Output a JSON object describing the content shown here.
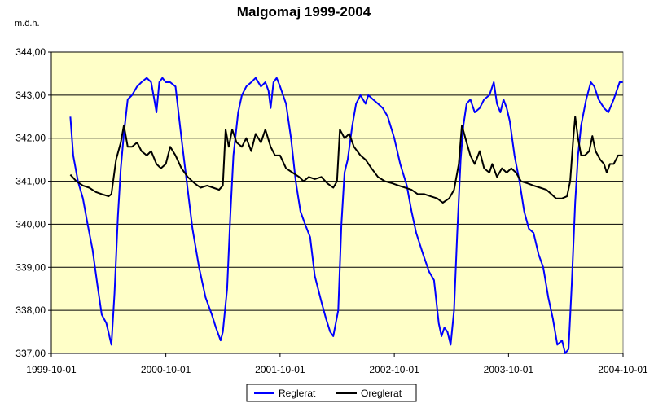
{
  "chart_data": {
    "type": "line",
    "title": "Malgomaj 1999-2004",
    "ylabel": "m.ö.h.",
    "xlabel": "",
    "x_ticks": [
      "1999-10-01",
      "2000-10-01",
      "2001-10-01",
      "2002-10-01",
      "2003-10-01",
      "2004-10-01"
    ],
    "y_ticks": [
      "337,00",
      "338,00",
      "339,00",
      "340,00",
      "341,00",
      "342,00",
      "343,00",
      "344,00"
    ],
    "xlim": [
      "1999-10-01",
      "2004-10-01"
    ],
    "ylim": [
      337,
      344
    ],
    "grid": "horizontal",
    "legend_position": "bottom",
    "plot_background": "#FFFFC8",
    "series": [
      {
        "name": "Reglerat",
        "color": "#0000FF",
        "points": [
          [
            "1999-12-01",
            342.5
          ],
          [
            "1999-12-10",
            341.6
          ],
          [
            "1999-12-25",
            341.0
          ],
          [
            "2000-01-10",
            340.6
          ],
          [
            "2000-01-25",
            340.0
          ],
          [
            "2000-02-10",
            339.4
          ],
          [
            "2000-02-25",
            338.6
          ],
          [
            "2000-03-10",
            337.9
          ],
          [
            "2000-03-25",
            337.7
          ],
          [
            "2000-04-10",
            337.2
          ],
          [
            "2000-04-20",
            338.4
          ],
          [
            "2000-05-01",
            340.2
          ],
          [
            "2000-05-10",
            341.3
          ],
          [
            "2000-05-20",
            342.1
          ],
          [
            "2000-06-01",
            342.9
          ],
          [
            "2000-06-15",
            343.0
          ],
          [
            "2000-07-01",
            343.2
          ],
          [
            "2000-07-15",
            343.3
          ],
          [
            "2000-08-01",
            343.4
          ],
          [
            "2000-08-15",
            343.3
          ],
          [
            "2000-08-25",
            342.9
          ],
          [
            "2000-09-01",
            342.6
          ],
          [
            "2000-09-10",
            343.3
          ],
          [
            "2000-09-20",
            343.4
          ],
          [
            "2000-10-01",
            343.3
          ],
          [
            "2000-10-15",
            343.3
          ],
          [
            "2000-11-01",
            343.2
          ],
          [
            "2000-11-20",
            342.0
          ],
          [
            "2000-12-10",
            340.8
          ],
          [
            "2000-12-25",
            339.9
          ],
          [
            "2001-01-15",
            339.0
          ],
          [
            "2001-02-05",
            338.3
          ],
          [
            "2001-02-25",
            337.9
          ],
          [
            "2001-03-10",
            337.6
          ],
          [
            "2001-03-25",
            337.3
          ],
          [
            "2001-04-01",
            337.5
          ],
          [
            "2001-04-15",
            338.5
          ],
          [
            "2001-04-25",
            340.2
          ],
          [
            "2001-05-05",
            341.6
          ],
          [
            "2001-05-20",
            342.6
          ],
          [
            "2001-06-01",
            343.0
          ],
          [
            "2001-06-15",
            343.2
          ],
          [
            "2001-07-01",
            343.3
          ],
          [
            "2001-07-15",
            343.4
          ],
          [
            "2001-08-01",
            343.2
          ],
          [
            "2001-08-15",
            343.3
          ],
          [
            "2001-08-25",
            343.1
          ],
          [
            "2001-09-01",
            342.7
          ],
          [
            "2001-09-10",
            343.3
          ],
          [
            "2001-09-20",
            343.4
          ],
          [
            "2001-10-01",
            343.2
          ],
          [
            "2001-10-20",
            342.8
          ],
          [
            "2001-11-05",
            342.0
          ],
          [
            "2001-11-20",
            341.0
          ],
          [
            "2001-12-05",
            340.3
          ],
          [
            "2001-12-20",
            340.0
          ],
          [
            "2002-01-05",
            339.7
          ],
          [
            "2002-01-20",
            338.8
          ],
          [
            "2002-02-10",
            338.2
          ],
          [
            "2002-02-25",
            337.8
          ],
          [
            "2002-03-10",
            337.5
          ],
          [
            "2002-03-20",
            337.4
          ],
          [
            "2002-04-05",
            338.0
          ],
          [
            "2002-04-15",
            340.0
          ],
          [
            "2002-04-25",
            341.2
          ],
          [
            "2002-05-05",
            341.5
          ],
          [
            "2002-05-20",
            342.3
          ],
          [
            "2002-06-01",
            342.8
          ],
          [
            "2002-06-15",
            343.0
          ],
          [
            "2002-07-01",
            342.8
          ],
          [
            "2002-07-10",
            343.0
          ],
          [
            "2002-07-25",
            342.9
          ],
          [
            "2002-08-10",
            342.8
          ],
          [
            "2002-08-25",
            342.7
          ],
          [
            "2002-09-10",
            342.5
          ],
          [
            "2002-10-01",
            342.0
          ],
          [
            "2002-10-20",
            341.4
          ],
          [
            "2002-11-10",
            340.9
          ],
          [
            "2002-11-25",
            340.3
          ],
          [
            "2002-12-10",
            339.8
          ],
          [
            "2003-01-01",
            339.3
          ],
          [
            "2003-01-20",
            338.9
          ],
          [
            "2003-02-05",
            338.7
          ],
          [
            "2003-02-20",
            337.7
          ],
          [
            "2003-03-01",
            337.4
          ],
          [
            "2003-03-10",
            337.6
          ],
          [
            "2003-03-20",
            337.5
          ],
          [
            "2003-03-30",
            337.2
          ],
          [
            "2003-04-10",
            338.0
          ],
          [
            "2003-04-20",
            339.8
          ],
          [
            "2003-05-01",
            341.5
          ],
          [
            "2003-05-10",
            342.3
          ],
          [
            "2003-05-20",
            342.8
          ],
          [
            "2003-06-01",
            342.9
          ],
          [
            "2003-06-15",
            342.6
          ],
          [
            "2003-07-01",
            342.7
          ],
          [
            "2003-07-15",
            342.9
          ],
          [
            "2003-08-01",
            343.0
          ],
          [
            "2003-08-15",
            343.3
          ],
          [
            "2003-08-25",
            342.8
          ],
          [
            "2003-09-05",
            342.6
          ],
          [
            "2003-09-15",
            342.9
          ],
          [
            "2003-09-25",
            342.7
          ],
          [
            "2003-10-05",
            342.4
          ],
          [
            "2003-10-20",
            341.6
          ],
          [
            "2003-11-05",
            341.0
          ],
          [
            "2003-11-20",
            340.3
          ],
          [
            "2003-12-05",
            339.9
          ],
          [
            "2003-12-20",
            339.8
          ],
          [
            "2004-01-05",
            339.3
          ],
          [
            "2004-01-20",
            339.0
          ],
          [
            "2004-02-05",
            338.3
          ],
          [
            "2004-02-20",
            337.8
          ],
          [
            "2004-03-05",
            337.2
          ],
          [
            "2004-03-20",
            337.3
          ],
          [
            "2004-03-30",
            337.0
          ],
          [
            "2004-04-10",
            337.1
          ],
          [
            "2004-04-20",
            338.6
          ],
          [
            "2004-05-01",
            340.5
          ],
          [
            "2004-05-10",
            341.6
          ],
          [
            "2004-05-20",
            342.3
          ],
          [
            "2004-06-05",
            342.9
          ],
          [
            "2004-06-20",
            343.3
          ],
          [
            "2004-07-01",
            343.2
          ],
          [
            "2004-07-15",
            342.9
          ],
          [
            "2004-08-01",
            342.7
          ],
          [
            "2004-08-15",
            342.6
          ],
          [
            "2004-09-01",
            342.9
          ],
          [
            "2004-09-20",
            343.3
          ],
          [
            "2004-09-30",
            343.3
          ]
        ]
      },
      {
        "name": "Oreglerat",
        "color": "#000000",
        "points": [
          [
            "1999-12-01",
            341.15
          ],
          [
            "1999-12-20",
            341.0
          ],
          [
            "2000-01-10",
            340.9
          ],
          [
            "2000-01-30",
            340.85
          ],
          [
            "2000-02-20",
            340.75
          ],
          [
            "2000-03-10",
            340.7
          ],
          [
            "2000-04-01",
            340.65
          ],
          [
            "2000-04-10",
            340.7
          ],
          [
            "2000-04-25",
            341.5
          ],
          [
            "2000-05-10",
            341.9
          ],
          [
            "2000-05-20",
            342.3
          ],
          [
            "2000-06-01",
            341.8
          ],
          [
            "2000-06-15",
            341.8
          ],
          [
            "2000-07-01",
            341.9
          ],
          [
            "2000-07-15",
            341.7
          ],
          [
            "2000-08-01",
            341.6
          ],
          [
            "2000-08-15",
            341.7
          ],
          [
            "2000-09-01",
            341.4
          ],
          [
            "2000-09-15",
            341.3
          ],
          [
            "2000-10-01",
            341.4
          ],
          [
            "2000-10-15",
            341.8
          ],
          [
            "2000-11-01",
            341.6
          ],
          [
            "2000-11-20",
            341.3
          ],
          [
            "2000-12-10",
            341.1
          ],
          [
            "2001-01-01",
            340.95
          ],
          [
            "2001-01-20",
            340.85
          ],
          [
            "2001-02-10",
            340.9
          ],
          [
            "2001-03-01",
            340.85
          ],
          [
            "2001-03-20",
            340.8
          ],
          [
            "2001-04-01",
            340.9
          ],
          [
            "2001-04-10",
            342.2
          ],
          [
            "2001-04-20",
            341.8
          ],
          [
            "2001-05-01",
            342.2
          ],
          [
            "2001-05-15",
            341.9
          ],
          [
            "2001-06-01",
            341.8
          ],
          [
            "2001-06-15",
            342.0
          ],
          [
            "2001-07-01",
            341.7
          ],
          [
            "2001-07-15",
            342.1
          ],
          [
            "2001-08-01",
            341.9
          ],
          [
            "2001-08-15",
            342.2
          ],
          [
            "2001-09-01",
            341.8
          ],
          [
            "2001-09-15",
            341.6
          ],
          [
            "2001-10-01",
            341.6
          ],
          [
            "2001-10-20",
            341.3
          ],
          [
            "2001-11-10",
            341.2
          ],
          [
            "2001-12-01",
            341.1
          ],
          [
            "2001-12-15",
            341.0
          ],
          [
            "2002-01-01",
            341.1
          ],
          [
            "2002-01-20",
            341.05
          ],
          [
            "2002-02-10",
            341.1
          ],
          [
            "2002-03-01",
            340.95
          ],
          [
            "2002-03-20",
            340.85
          ],
          [
            "2002-04-01",
            341.0
          ],
          [
            "2002-04-10",
            342.2
          ],
          [
            "2002-04-25",
            342.0
          ],
          [
            "2002-05-10",
            342.1
          ],
          [
            "2002-05-25",
            341.8
          ],
          [
            "2002-06-15",
            341.6
          ],
          [
            "2002-07-01",
            341.5
          ],
          [
            "2002-07-20",
            341.3
          ],
          [
            "2002-08-10",
            341.1
          ],
          [
            "2002-09-01",
            341.0
          ],
          [
            "2002-09-25",
            340.95
          ],
          [
            "2002-10-15",
            340.9
          ],
          [
            "2002-11-05",
            340.85
          ],
          [
            "2002-11-25",
            340.8
          ],
          [
            "2002-12-15",
            340.7
          ],
          [
            "2003-01-05",
            340.7
          ],
          [
            "2003-01-25",
            340.65
          ],
          [
            "2003-02-15",
            340.6
          ],
          [
            "2003-03-05",
            340.5
          ],
          [
            "2003-03-25",
            340.6
          ],
          [
            "2003-04-10",
            340.8
          ],
          [
            "2003-04-25",
            341.4
          ],
          [
            "2003-05-05",
            342.3
          ],
          [
            "2003-05-20",
            341.9
          ],
          [
            "2003-06-01",
            341.6
          ],
          [
            "2003-06-15",
            341.4
          ],
          [
            "2003-07-01",
            341.7
          ],
          [
            "2003-07-15",
            341.3
          ],
          [
            "2003-08-01",
            341.2
          ],
          [
            "2003-08-10",
            341.4
          ],
          [
            "2003-08-25",
            341.1
          ],
          [
            "2003-09-10",
            341.3
          ],
          [
            "2003-09-25",
            341.2
          ],
          [
            "2003-10-10",
            341.3
          ],
          [
            "2003-10-25",
            341.2
          ],
          [
            "2003-11-10",
            341.0
          ],
          [
            "2003-12-01",
            340.95
          ],
          [
            "2003-12-20",
            340.9
          ],
          [
            "2004-01-10",
            340.85
          ],
          [
            "2004-01-30",
            340.8
          ],
          [
            "2004-02-15",
            340.7
          ],
          [
            "2004-03-01",
            340.6
          ],
          [
            "2004-03-20",
            340.6
          ],
          [
            "2004-04-05",
            340.65
          ],
          [
            "2004-04-15",
            341.0
          ],
          [
            "2004-04-25",
            342.0
          ],
          [
            "2004-05-01",
            342.5
          ],
          [
            "2004-05-10",
            342.0
          ],
          [
            "2004-05-20",
            341.6
          ],
          [
            "2004-06-01",
            341.6
          ],
          [
            "2004-06-15",
            341.7
          ],
          [
            "2004-06-25",
            342.05
          ],
          [
            "2004-07-05",
            341.7
          ],
          [
            "2004-07-20",
            341.5
          ],
          [
            "2004-08-01",
            341.4
          ],
          [
            "2004-08-10",
            341.2
          ],
          [
            "2004-08-20",
            341.4
          ],
          [
            "2004-09-01",
            341.4
          ],
          [
            "2004-09-15",
            341.6
          ],
          [
            "2004-09-30",
            341.6
          ]
        ]
      }
    ]
  }
}
